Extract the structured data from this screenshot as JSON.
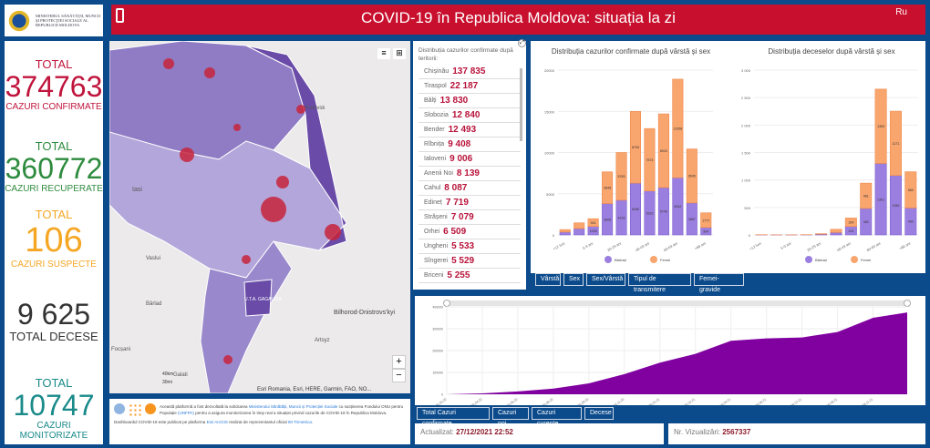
{
  "logo": {
    "text": "MINISTERUL SĂNĂTĂŢII, MUNCII ŞI PROTECŢIEI SOCIALE AL REPUBLICII MOLDOVA"
  },
  "header": {
    "title": "COVID-19 în Republica Moldova: situația la zi",
    "language": "Ru",
    "icon": "mobile-phone-icon"
  },
  "stats": [
    {
      "top": "TOTAL",
      "value": "374763",
      "label": "CAZURI CONFIRMATE",
      "color": "#c0143c"
    },
    {
      "top": "TOTAL",
      "value": "360772",
      "label": "CAZURI RECUPERATE",
      "color": "#2e8b3e"
    },
    {
      "top": "TOTAL",
      "value": "106",
      "label": "CAZURI SUSPECTE",
      "color": "#f5a623"
    },
    {
      "top": "",
      "value": "9 625",
      "label": "TOTAL DECESE",
      "color": "#333333"
    },
    {
      "top": "TOTAL",
      "value": "10747",
      "label": "CAZURI MONITORIZATE",
      "color": "#1a8a8a"
    }
  ],
  "map": {
    "labels": [
      "Iasi",
      "Kotovsk",
      "Vaslui",
      "Bârlad",
      "Bilhorod-Dnistrovs'kyi",
      "Artsyz",
      "Focșani",
      "Galati",
      "U.T.A. GAGAUZIA"
    ],
    "attribution": "Esri Romania, Esri, HERE, Garmin, FAO, NO...",
    "scale_km": "40km",
    "scale_mi": "30mi",
    "zoom_in": "+",
    "zoom_out": "−"
  },
  "info": {
    "line1a": "Această platformă a fost dezvoltată la solicitarea ",
    "link1": "Ministerului Sănătății, Muncii și Protecției Sociale",
    "line1b": " cu susținerea Fondului ONU pentru Populație ",
    "link2": "(UNFPA)",
    "line1c": " pentru a asigura monitorizarea în timp real a situației privind cazurile de COVID-19 în Republica Moldova.",
    "line2a": "Dashboardul COVID-19 este publicat pe platforma ",
    "link3": "Esri ArcGIS",
    "line2b": " realizat de reprezentantul oficial ",
    "link4": "IM Trimetrica",
    "line2c": "."
  },
  "territory": {
    "title": "Distribuția cazurilor confirmate după teritorii:",
    "items": [
      {
        "name": "Chișinău",
        "value": "137 835"
      },
      {
        "name": "Tiraspol",
        "value": "22 187"
      },
      {
        "name": "Bălți",
        "value": "13 830"
      },
      {
        "name": "Slobozia",
        "value": "12 840"
      },
      {
        "name": "Bender",
        "value": "12 493"
      },
      {
        "name": "Rîbnița",
        "value": "9 408"
      },
      {
        "name": "Ialoveni",
        "value": "9 006"
      },
      {
        "name": "Anenii Noi",
        "value": "8 139"
      },
      {
        "name": "Cahul",
        "value": "8 087"
      },
      {
        "name": "Edineț",
        "value": "7 719"
      },
      {
        "name": "Strășeni",
        "value": "7 079"
      },
      {
        "name": "Orhei",
        "value": "6 509"
      },
      {
        "name": "Ungheni",
        "value": "5 533"
      },
      {
        "name": "Sîngerei",
        "value": "5 529"
      },
      {
        "name": "Briceni",
        "value": "5 255"
      }
    ]
  },
  "chart_tabs": [
    "Vârstă",
    "Sex",
    "Sex/Vârstă",
    "Tipul de transmitere",
    "Femei-gravide"
  ],
  "line_tabs": [
    "Total Cazuri confirmate",
    "Cazuri noi",
    "Cazuri curente",
    "Decese"
  ],
  "footer": {
    "updated_label": "Actualizat:",
    "updated_value": "27/12/2021 22:52",
    "views_label": "Nr. Vizualizări:",
    "views_value": "2567337"
  },
  "chart_data": [
    {
      "type": "bar",
      "stacked": true,
      "title": "Distribuția cazurilor confirmate după vârstă și sex",
      "categories": [
        "<12 luni",
        "1-4 ani",
        "5-9 ani",
        "10-19 ani",
        "20-29 ani",
        "30-39 ani",
        "40-49 ani",
        "50-59 ani",
        "60-69 ani",
        "70-79 ani",
        ">80 ani"
      ],
      "tick_labels": [
        "<12 luni",
        "",
        "5-9 ani",
        "",
        "20-29 ani",
        "",
        "40-49 ani",
        "",
        "60-69 ani",
        "",
        ">80 ani"
      ],
      "ylim": [
        0,
        20000
      ],
      "yticks": [
        "0",
        "5000",
        "10000",
        "15000",
        "20000"
      ],
      "legend": "bottom",
      "colors": {
        "Bărbați": "#9b7fe0",
        "Femei": "#f8a56e"
      },
      "series": [
        {
          "name": "Bărbați",
          "values": [
            350,
            772,
            1026,
            3808,
            4216,
            6285,
            5333,
            5745,
            6942,
            3887,
            904
          ]
        },
        {
          "name": "Femei",
          "values": [
            300,
            695,
            941,
            3848,
            5783,
            8705,
            7574,
            8943,
            11958,
            6545,
            1777
          ]
        }
      ]
    },
    {
      "type": "bar",
      "stacked": true,
      "title": "Distribuția deceselor după vârstă și sex",
      "categories": [
        "<12 luni",
        "1-4 ani",
        "5-9 ani",
        "10-19 ani",
        "20-29 ani",
        "30-39 ani",
        "40-49 ani",
        "50-59 ani",
        "60-69 ani",
        "70-79 ani",
        ">80 ani"
      ],
      "tick_labels": [
        "<12 luni",
        "",
        "5-9 ani",
        "",
        "20-29 ani",
        "",
        "40-49 ani",
        "",
        "60-69 ani",
        "",
        ">80 ani"
      ],
      "ylim": [
        0,
        3000
      ],
      "yticks": [
        "0",
        "500",
        "1 000",
        "1 500",
        "2 000",
        "2 500",
        "3 000"
      ],
      "legend": "bottom",
      "colors": {
        "Bărbați": "#9b7fe0",
        "Femei": "#f8a56e"
      },
      "series": [
        {
          "name": "Bărbați",
          "values": [
            2,
            1,
            1,
            3,
            14,
            45,
            154,
            482,
            1301,
            1082,
            490
          ]
        },
        {
          "name": "Femei",
          "values": [
            2,
            1,
            1,
            2,
            8,
            58,
            154,
            461,
            1353,
            1171,
            660
          ]
        }
      ]
    },
    {
      "type": "area",
      "x": [
        "06.03.20",
        "26.04.20",
        "16.06.20",
        "06.08.20",
        "26.09.20",
        "16.11.20",
        "06.01.21",
        "26.02.21",
        "18.04.21",
        "08.06.21",
        "29.07.21",
        "18.09.21",
        "08.11.21",
        "27.12.21"
      ],
      "y": [
        0,
        4000,
        13000,
        26000,
        50000,
        92000,
        145000,
        185000,
        245000,
        256000,
        260000,
        285000,
        350000,
        374763
      ],
      "tick_labels": [
        "06.03.20",
        "26.04.20",
        "16.06.20",
        "06.08.20",
        "26.09.20",
        "16.11.20",
        "06.01.21",
        "26.02.21",
        "18.04.21",
        "08.06.21",
        "29.07.21",
        "18.09.21",
        "08.11.21"
      ],
      "ylim": [
        0,
        400000
      ],
      "yticks": [
        "0",
        "100000",
        "200000",
        "300000",
        "400000"
      ],
      "color": "#8000a0"
    }
  ]
}
